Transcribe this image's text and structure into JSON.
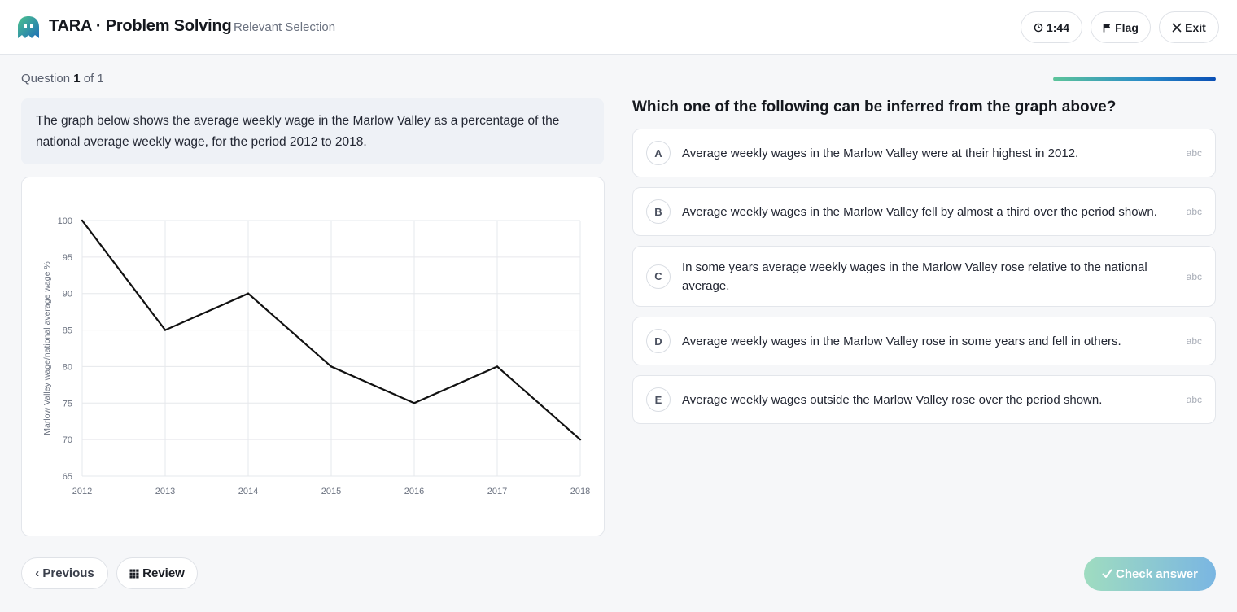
{
  "header": {
    "app_title": "TARA · Problem Solving",
    "subtitle": "Relevant Selection",
    "timer": "1:44",
    "flag_label": "Flag",
    "exit_label": "Exit"
  },
  "question": {
    "counter_prefix": "Question",
    "number": "1",
    "counter_suffix": "of 1",
    "progress": 1.0,
    "stimulus": "The graph below shows the average weekly wage in the Marlow Valley as a percentage of the national average weekly wage, for the period 2012 to 2018.",
    "prompt": "Which one of the following can be inferred from the graph above?"
  },
  "options": [
    {
      "letter": "A",
      "text": "Average weekly wages in the Marlow Valley were at their highest in 2012.",
      "tag": "abc"
    },
    {
      "letter": "B",
      "text": "Average weekly wages in the Marlow Valley fell by almost a third over the period shown.",
      "tag": "abc"
    },
    {
      "letter": "C",
      "text": "In some years average weekly wages in the Marlow Valley rose relative to the national average.",
      "tag": "abc"
    },
    {
      "letter": "D",
      "text": "Average weekly wages in the Marlow Valley rose in some years and fell in others.",
      "tag": "abc"
    },
    {
      "letter": "E",
      "text": "Average weekly wages outside the Marlow Valley rose over the period shown.",
      "tag": "abc"
    }
  ],
  "footer": {
    "previous_label": "‹ Previous",
    "review_label": "Review",
    "check_label": "Check answer"
  },
  "colors": {
    "progress_start": "#5cc49a",
    "progress_end": "#0a4fb5",
    "check_start": "#9fdcc0",
    "check_end": "#7ab6e2"
  },
  "chart_data": {
    "type": "line",
    "x": [
      2012,
      2013,
      2014,
      2015,
      2016,
      2017,
      2018
    ],
    "series": [
      {
        "values": [
          100,
          85,
          90,
          80,
          75,
          80,
          70
        ]
      }
    ],
    "xlabel": "",
    "ylabel": "Marlow Valley wage/national average wage %",
    "ylim": [
      65,
      100
    ],
    "yticks": [
      65,
      70,
      75,
      80,
      85,
      90,
      95,
      100
    ],
    "grid": true
  }
}
